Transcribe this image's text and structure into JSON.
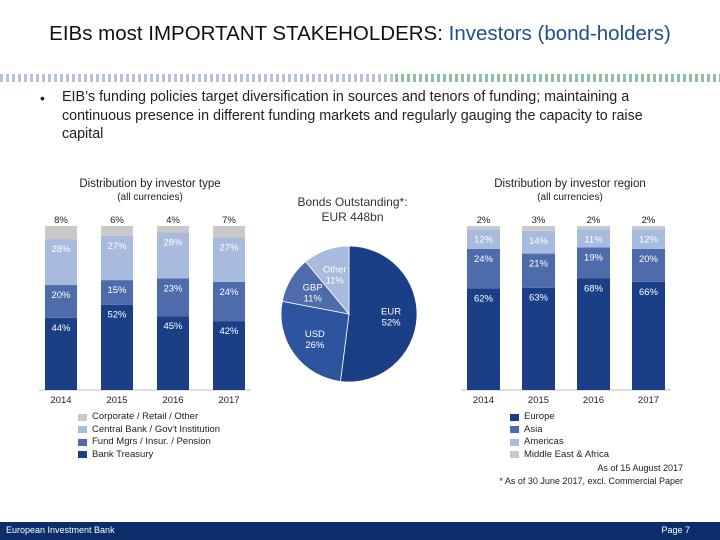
{
  "title": {
    "main": "EIBs most IMPORTANT STAKEHOLDERS:",
    "highlight": "Investors (bond-holders)"
  },
  "bullet": {
    "mark": "•",
    "text": "EIB’s funding policies target diversification in sources and tenors of funding; maintaining a continuous presence in different funding markets and regularly gauging the capacity to raise capital"
  },
  "colors": {
    "c1": "#1b3f86",
    "c2": "#4e6bab",
    "c3": "#a8bade",
    "c4": "#c9c9c9",
    "footer": "#0b2e6b"
  },
  "chart_data": [
    {
      "type": "bar",
      "stacked": true,
      "title": "Distribution by investor type",
      "subtitle": "(all currencies)",
      "categories": [
        "2014",
        "2015",
        "2016",
        "2017"
      ],
      "series": [
        {
          "name": "Bank Treasury",
          "values": [
            44,
            52,
            45,
            42
          ],
          "labels": [
            "44%",
            "52%",
            "45%",
            "42%"
          ]
        },
        {
          "name": "Fund Mgrs / Insur. / Pension",
          "values": [
            20,
            15,
            23,
            24
          ],
          "labels": [
            "20%",
            "15%",
            "23%",
            "24%"
          ]
        },
        {
          "name": "Central Bank / Gov't Institution",
          "values": [
            28,
            27,
            28,
            27
          ],
          "labels": [
            "28%",
            "27%",
            "28%",
            "27%"
          ]
        },
        {
          "name": "Corporate / Retail / Other",
          "values": [
            8,
            6,
            4,
            7
          ],
          "labels": [
            "8%",
            "6%",
            "4%",
            "7%"
          ]
        }
      ],
      "ylim": [
        0,
        100
      ]
    },
    {
      "type": "pie",
      "title": "Bonds Outstanding*:",
      "subtitle": "EUR 448bn",
      "slices": [
        {
          "name": "EUR",
          "value": 52,
          "label": "52%"
        },
        {
          "name": "USD",
          "value": 26,
          "label": "26%"
        },
        {
          "name": "GBP",
          "value": 11,
          "label": "11%"
        },
        {
          "name": "Other",
          "value": 11,
          "label": "11%"
        }
      ]
    },
    {
      "type": "bar",
      "stacked": true,
      "title": "Distribution by investor region",
      "subtitle": "(all currencies)",
      "categories": [
        "2014",
        "2015",
        "2016",
        "2017"
      ],
      "series": [
        {
          "name": "Europe",
          "values": [
            62,
            63,
            68,
            66
          ],
          "labels": [
            "62%",
            "63%",
            "68%",
            "66%"
          ]
        },
        {
          "name": "Asia",
          "values": [
            24,
            21,
            19,
            20
          ],
          "labels": [
            "24%",
            "21%",
            "19%",
            "20%"
          ]
        },
        {
          "name": "Americas",
          "values": [
            12,
            14,
            11,
            12
          ],
          "labels": [
            "12%",
            "14%",
            "11%",
            "12%"
          ]
        },
        {
          "name": "Middle East & Africa",
          "values": [
            2,
            3,
            2,
            2
          ],
          "labels": [
            "2%",
            "3%",
            "2%",
            "2%"
          ]
        }
      ],
      "ylim": [
        0,
        100
      ]
    }
  ],
  "notes": {
    "as_of": "As of 15 August 2017",
    "footnote": "* As of 30 June 2017, excl. Commercial Paper"
  },
  "footer": {
    "left": "European Investment Bank",
    "right": "Page 7"
  }
}
